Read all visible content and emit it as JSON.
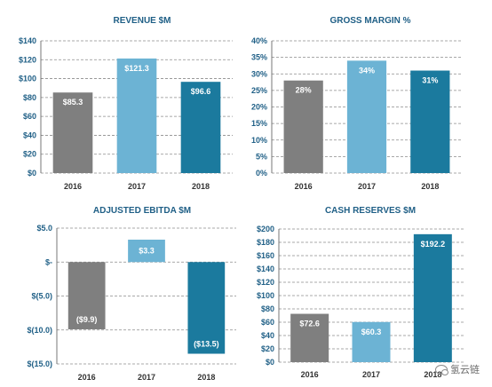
{
  "chart_data": [
    {
      "type": "bar",
      "title": "REVENUE $M",
      "categories": [
        "2016",
        "2017",
        "2018"
      ],
      "values": [
        85.3,
        121.3,
        96.6
      ],
      "value_labels": [
        "$85.3",
        "$121.3",
        "$96.6"
      ],
      "ylim": [
        0,
        140
      ],
      "yticks": [
        0,
        20,
        40,
        60,
        80,
        100,
        120,
        140
      ],
      "ytick_labels": [
        "$0",
        "$20",
        "$40",
        "$60",
        "$80",
        "$100",
        "$120",
        "$140"
      ],
      "colors": [
        "#7f7f7f",
        "#6cb3d4",
        "#1b7a9e"
      ],
      "grid": true
    },
    {
      "type": "bar",
      "title": "GROSS MARGIN %",
      "categories": [
        "2016",
        "2017",
        "2018"
      ],
      "values": [
        28,
        34,
        31
      ],
      "value_labels": [
        "28%",
        "34%",
        "31%"
      ],
      "ylim": [
        0,
        40
      ],
      "yticks": [
        0,
        5,
        10,
        15,
        20,
        25,
        30,
        35,
        40
      ],
      "ytick_labels": [
        "0%",
        "5%",
        "10%",
        "15%",
        "20%",
        "25%",
        "30%",
        "35%",
        "40%"
      ],
      "colors": [
        "#7f7f7f",
        "#6cb3d4",
        "#1b7a9e"
      ],
      "grid": true
    },
    {
      "type": "bar",
      "title": "ADJUSTED EBITDA $M",
      "categories": [
        "2016",
        "2017",
        "2018"
      ],
      "values": [
        -9.9,
        3.3,
        -13.5
      ],
      "value_labels": [
        "($9.9)",
        "$3.3",
        "($13.5)"
      ],
      "ylim": [
        -15,
        5
      ],
      "yticks": [
        -15,
        -10,
        -5,
        0,
        5
      ],
      "ytick_labels": [
        "$(15.0)",
        "$(10.0)",
        "$(5.0)",
        "$-",
        "$5.0"
      ],
      "colors": [
        "#7f7f7f",
        "#6cb3d4",
        "#1b7a9e"
      ],
      "grid": true
    },
    {
      "type": "bar",
      "title": "CASH RESERVES $M",
      "categories": [
        "2016",
        "2017",
        "2018"
      ],
      "values": [
        72.6,
        60.3,
        192.2
      ],
      "value_labels": [
        "$72.6",
        "$60.3",
        "$192.2"
      ],
      "ylim": [
        0,
        200
      ],
      "yticks": [
        0,
        20,
        40,
        60,
        80,
        100,
        120,
        140,
        160,
        180,
        200
      ],
      "ytick_labels": [
        "$0",
        "$20",
        "$40",
        "$60",
        "$80",
        "$100",
        "$120",
        "$140",
        "$160",
        "$180",
        "$200"
      ],
      "colors": [
        "#7f7f7f",
        "#6cb3d4",
        "#1b7a9e"
      ],
      "grid": true
    }
  ],
  "watermark": {
    "text": "氢云链",
    "icon": "wechat-icon"
  }
}
